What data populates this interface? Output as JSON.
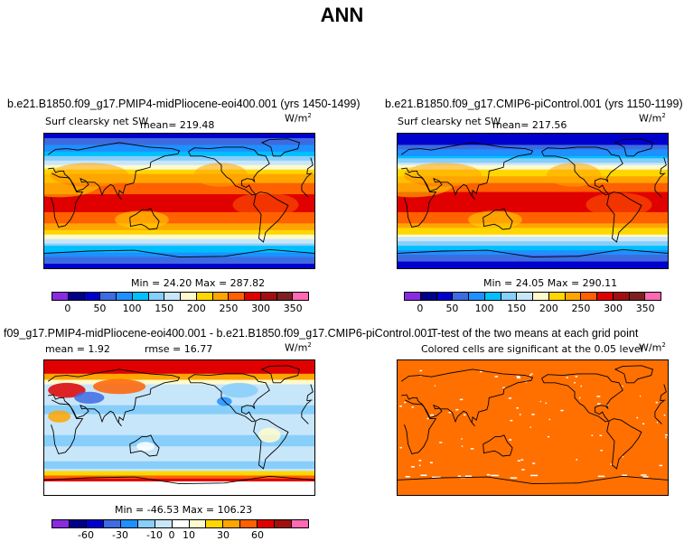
{
  "main_title": "ANN",
  "units_base": "W/m",
  "units_exp": "2",
  "palettes": {
    "absolute": [
      "#8A2BE2",
      "#00008B",
      "#0000CD",
      "#3D6BE0",
      "#1E90FF",
      "#00BFFF",
      "#87CEFA",
      "#C8E6FA",
      "#FFFACD",
      "#FFD700",
      "#FFA500",
      "#FF6000",
      "#E00000",
      "#A01010",
      "#7F2020",
      "#FF69B4"
    ],
    "difference": [
      "#8A2BE2",
      "#00008B",
      "#0000CD",
      "#3D6BE0",
      "#1E90FF",
      "#87CEFA",
      "#C8E6FA",
      "#FFFFFF",
      "#FFFACD",
      "#FFD700",
      "#FFA500",
      "#FF6000",
      "#E00000",
      "#A01010",
      "#FF69B4"
    ]
  },
  "ttest_color": "#FF7000",
  "panels": [
    {
      "title": "b.e21.B1850.f09_g17.PMIP4-midPliocene-eoi400.001 (yrs 1450-1499)",
      "variable": "Surf clearsky net SW",
      "mean_label": "mean= 219.48",
      "minmax_label": "Min =  24.20  Max = 287.82",
      "ticks": [
        "0",
        "50",
        "100",
        "150",
        "200",
        "250",
        "300",
        "350"
      ]
    },
    {
      "title": "b.e21.B1850.f09_g17.CMIP6-piControl.001 (yrs 1150-1199)",
      "variable": "Surf clearsky net SW",
      "mean_label": "mean= 217.56",
      "minmax_label": "Min =  24.05  Max = 290.11",
      "ticks": [
        "0",
        "50",
        "100",
        "150",
        "200",
        "250",
        "300",
        "350"
      ]
    },
    {
      "title": "f09_g17.PMIP4-midPliocene-eoi400.001 - b.e21.B1850.f09_g17.CMIP6-piControl.001",
      "stats_mean": "mean =   1.92",
      "stats_rmse": "rmse =  16.77",
      "minmax_label": "Min = -46.53 Max = 106.23",
      "ticks": [
        "-60",
        "-30",
        "-10",
        "0",
        "10",
        "30",
        "60"
      ]
    },
    {
      "title": "T-test of the two means at each grid point",
      "subtitle": "Colored cells are significant at the 0.05 level"
    }
  ],
  "chart_data": [
    {
      "type": "heatmap",
      "title": "b.e21.B1850.f09_g17.PMIP4-midPliocene-eoi400.001 (yrs 1450-1499)",
      "variable": "Surf clearsky net SW",
      "units": "W/m2",
      "mean": 219.48,
      "min": 24.2,
      "max": 287.82,
      "levels": [
        0,
        25,
        50,
        75,
        100,
        125,
        150,
        175,
        200,
        225,
        250,
        275,
        300,
        325,
        350
      ],
      "zonal_profile": {
        "lat": [
          -90,
          -75,
          -60,
          -45,
          -30,
          -15,
          0,
          15,
          30,
          45,
          60,
          75,
          90
        ],
        "value": [
          30,
          70,
          130,
          200,
          250,
          275,
          285,
          270,
          240,
          190,
          120,
          70,
          35
        ]
      }
    },
    {
      "type": "heatmap",
      "title": "b.e21.B1850.f09_g17.CMIP6-piControl.001 (yrs 1150-1199)",
      "variable": "Surf clearsky net SW",
      "units": "W/m2",
      "mean": 217.56,
      "min": 24.05,
      "max": 290.11,
      "levels": [
        0,
        25,
        50,
        75,
        100,
        125,
        150,
        175,
        200,
        225,
        250,
        275,
        300,
        325,
        350
      ],
      "zonal_profile": {
        "lat": [
          -90,
          -75,
          -60,
          -45,
          -30,
          -15,
          0,
          15,
          30,
          45,
          60,
          75,
          90
        ],
        "value": [
          28,
          60,
          120,
          195,
          250,
          275,
          288,
          272,
          240,
          185,
          105,
          50,
          28
        ]
      }
    },
    {
      "type": "heatmap",
      "title": "f09_g17.PMIP4-midPliocene-eoi400.001 - b.e21.B1850.f09_g17.CMIP6-piControl.001",
      "mean": 1.92,
      "rmse": 16.77,
      "min": -46.53,
      "max": 106.23,
      "levels": [
        -60,
        -30,
        -10,
        0,
        10,
        30,
        60
      ]
    },
    {
      "type": "heatmap",
      "title": "T-test of the two means at each grid point",
      "subtitle": "Colored cells are significant at the 0.05 level",
      "significance_level": 0.05
    }
  ]
}
